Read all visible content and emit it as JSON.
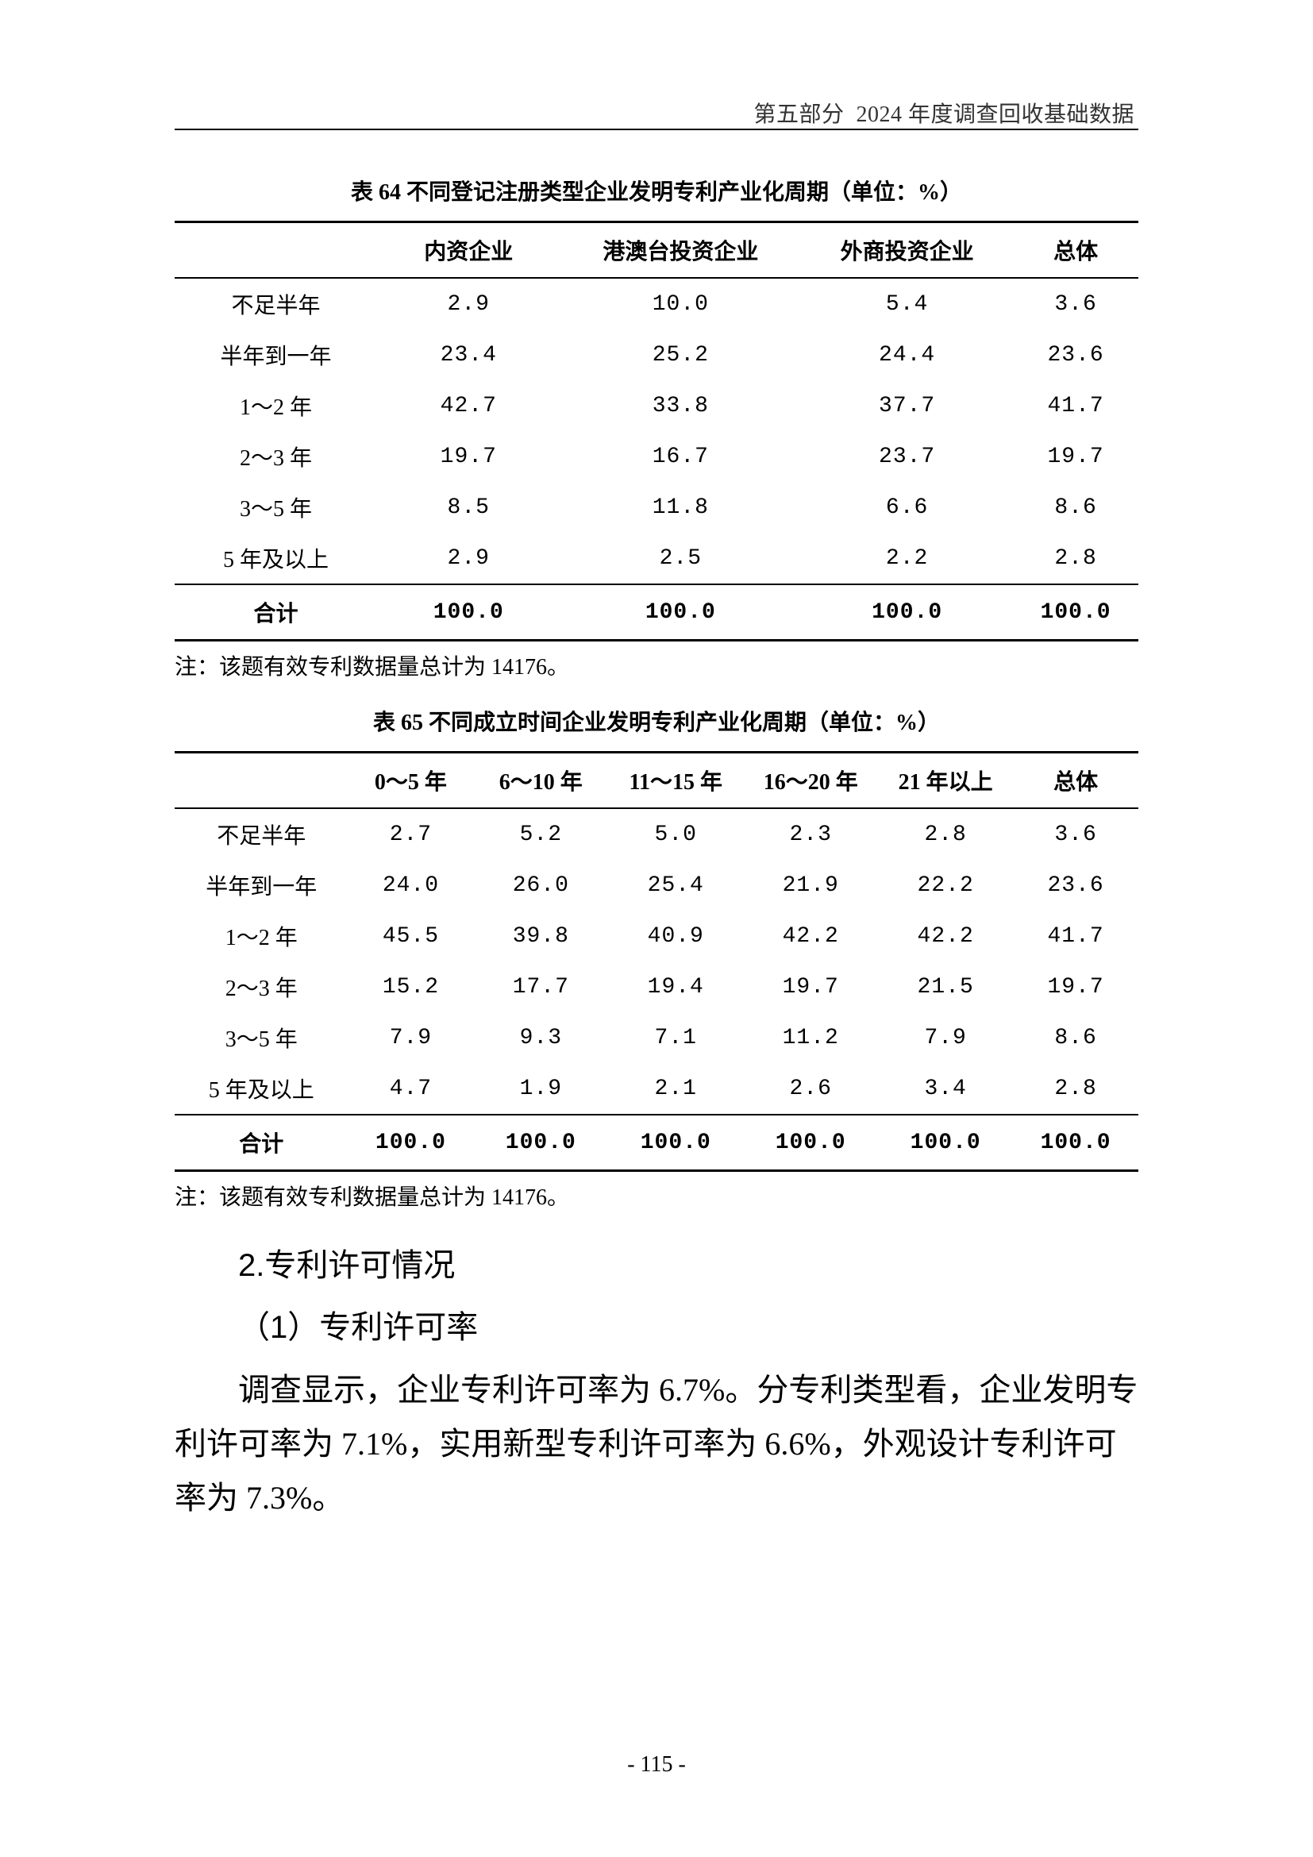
{
  "header": {
    "section_label": "第五部分",
    "section_title": "2024 年度调查回收基础数据"
  },
  "table64": {
    "title": "表 64  不同登记注册类型企业发明专利产业化周期（单位：%）",
    "columns": [
      "",
      "内资企业",
      "港澳台投资企业",
      "外商投资企业",
      "总体"
    ],
    "rows": [
      [
        "不足半年",
        "2.9",
        "10.0",
        "5.4",
        "3.6"
      ],
      [
        "半年到一年",
        "23.4",
        "25.2",
        "24.4",
        "23.6"
      ],
      [
        "1～2 年",
        "42.7",
        "33.8",
        "37.7",
        "41.7"
      ],
      [
        "2～3 年",
        "19.7",
        "16.7",
        "23.7",
        "19.7"
      ],
      [
        "3～5 年",
        "8.5",
        "11.8",
        "6.6",
        "8.6"
      ],
      [
        "5 年及以上",
        "2.9",
        "2.5",
        "2.2",
        "2.8"
      ]
    ],
    "total_row": [
      "合计",
      "100.0",
      "100.0",
      "100.0",
      "100.0"
    ],
    "note": "注：该题有效专利数据量总计为 14176。"
  },
  "table65": {
    "title": "表 65  不同成立时间企业发明专利产业化周期（单位：%）",
    "columns": [
      "",
      "0～5 年",
      "6～10 年",
      "11～15 年",
      "16～20 年",
      "21 年以上",
      "总体"
    ],
    "rows": [
      [
        "不足半年",
        "2.7",
        "5.2",
        "5.0",
        "2.3",
        "2.8",
        "3.6"
      ],
      [
        "半年到一年",
        "24.0",
        "26.0",
        "25.4",
        "21.9",
        "22.2",
        "23.6"
      ],
      [
        "1～2 年",
        "45.5",
        "39.8",
        "40.9",
        "42.2",
        "42.2",
        "41.7"
      ],
      [
        "2～3 年",
        "15.2",
        "17.7",
        "19.4",
        "19.7",
        "21.5",
        "19.7"
      ],
      [
        "3～5 年",
        "7.9",
        "9.3",
        "7.1",
        "11.2",
        "7.9",
        "8.6"
      ],
      [
        "5 年及以上",
        "4.7",
        "1.9",
        "2.1",
        "2.6",
        "3.4",
        "2.8"
      ]
    ],
    "total_row": [
      "合计",
      "100.0",
      "100.0",
      "100.0",
      "100.0",
      "100.0",
      "100.0"
    ],
    "note": "注：该题有效专利数据量总计为 14176。"
  },
  "section": {
    "heading": "2.专利许可情况",
    "subsection": "（1）专利许可率",
    "paragraph": "调查显示，企业专利许可率为 6.7%。分专利类型看，企业发明专利许可率为 7.1%，实用新型专利许可率为 6.6%，外观设计专利许可率为 7.3%。"
  },
  "page_number": "- 115 -"
}
